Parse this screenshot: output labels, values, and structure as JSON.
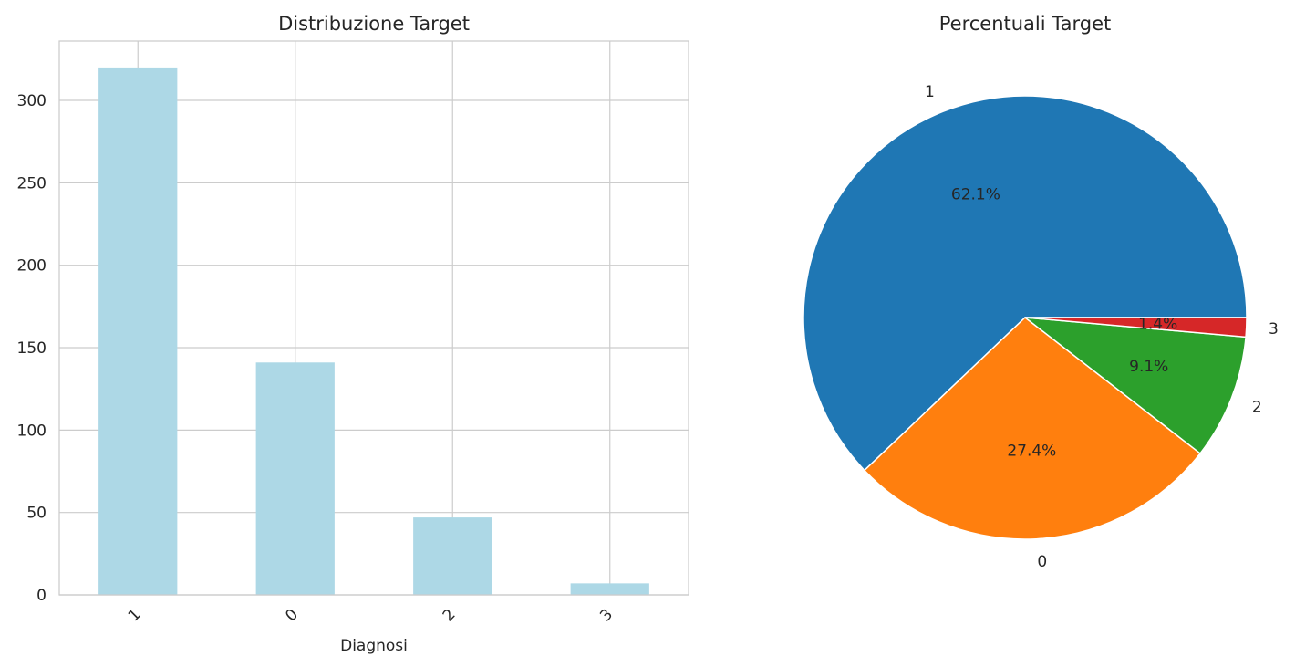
{
  "chart_data": [
    {
      "type": "bar",
      "title": "Distribuzione Target",
      "xlabel": "Diagnosi",
      "ylabel": "",
      "categories": [
        "1",
        "0",
        "2",
        "3"
      ],
      "values": [
        320,
        141,
        47,
        7
      ],
      "ylim": [
        0,
        336
      ],
      "yticks": [
        0,
        50,
        100,
        150,
        200,
        250,
        300
      ],
      "bar_color": "#add8e6",
      "grid": true,
      "xtick_rotation": 45
    },
    {
      "type": "pie",
      "title": "Percentuali Target",
      "labels": [
        "1",
        "0",
        "2",
        "3"
      ],
      "values": [
        62.1,
        27.4,
        9.1,
        1.4
      ],
      "pct_labels": [
        "62.1%",
        "27.4%",
        "9.1%",
        "1.4%"
      ],
      "colors": [
        "#1f77b4",
        "#ff7f0e",
        "#2ca02c",
        "#d62728"
      ]
    }
  ]
}
